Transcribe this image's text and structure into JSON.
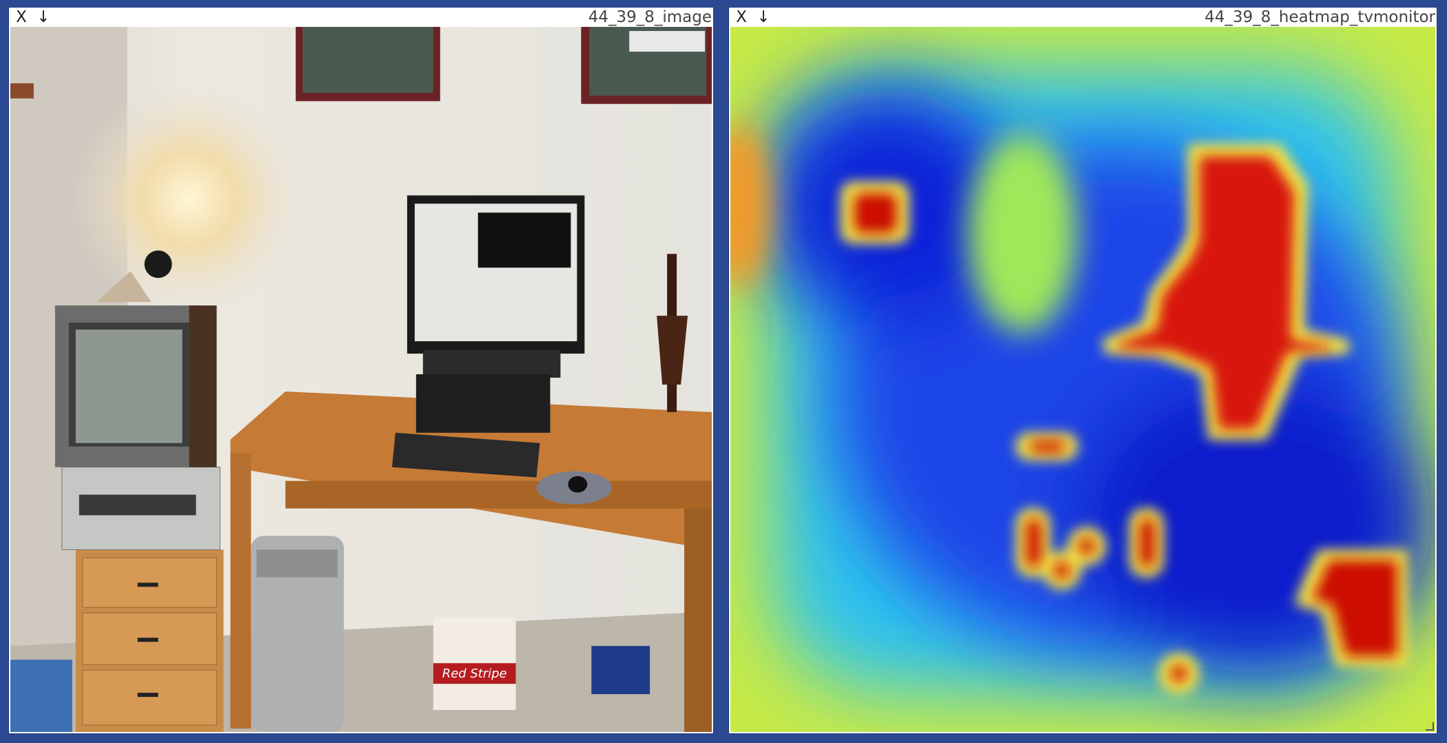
{
  "panes": [
    {
      "title": "44_39_8_image",
      "close_label": "X",
      "download_label": "↓",
      "scene_label": "Red Stripe"
    },
    {
      "title": "44_39_8_heatmap_tvmonitor",
      "close_label": "X",
      "download_label": "↓"
    }
  ],
  "colors": {
    "background": "#2c4a94",
    "heat_low": "#0a1fd6",
    "heat_mid": "#2ad0f0",
    "heat_warm": "#d8ef3a",
    "heat_high": "#cc0d05"
  }
}
